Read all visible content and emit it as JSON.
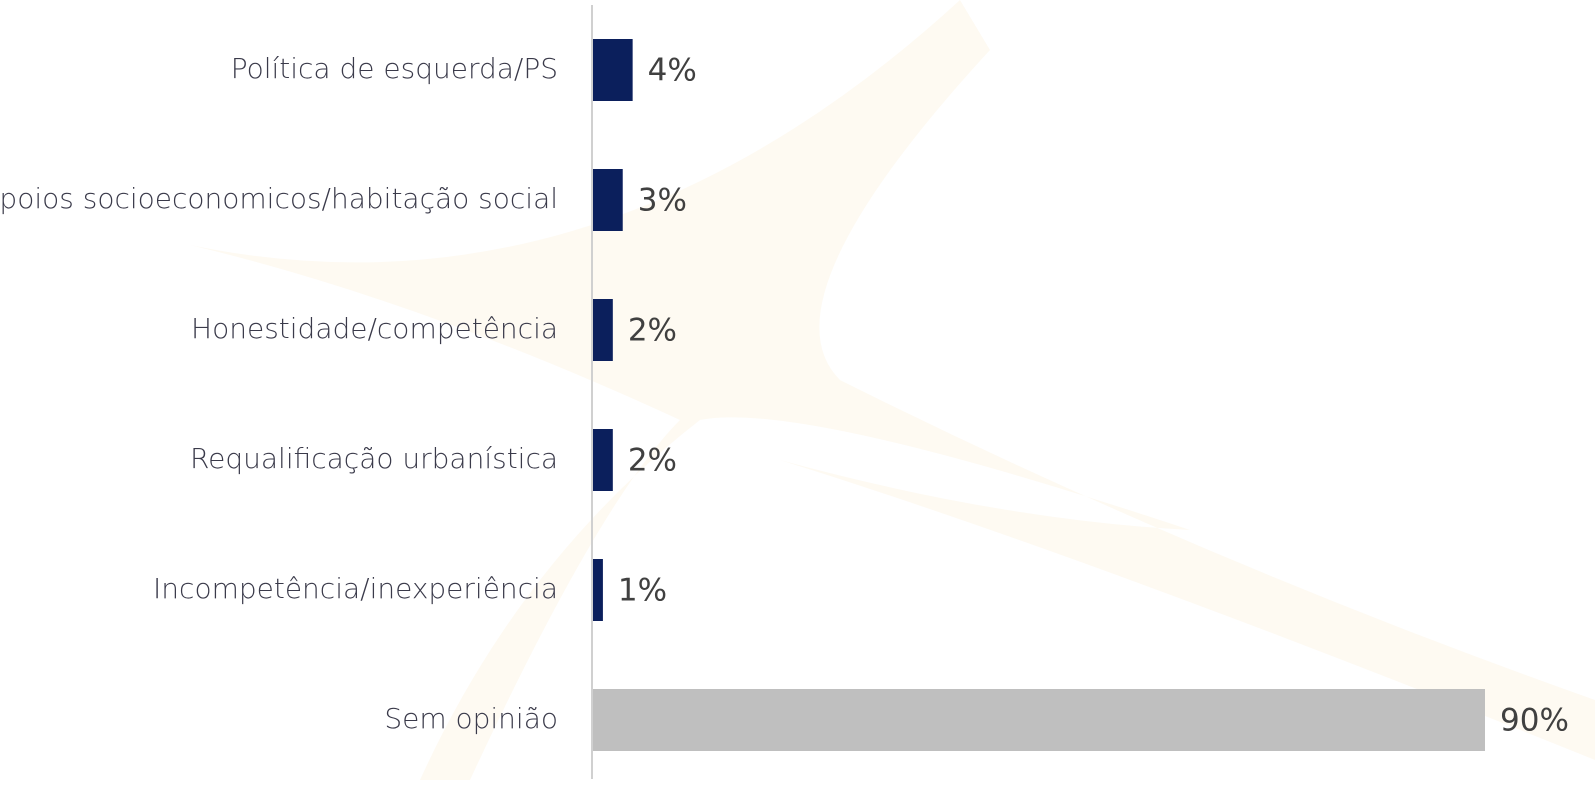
{
  "chart_data": {
    "type": "barh",
    "categories": [
      "Política de esquerda/PS",
      "Apoios socioeconomicos/habitação social",
      "Honestidade/competência",
      "Requalificação urbanística",
      "Incompetência/inexperiência",
      "Sem opinião"
    ],
    "values": [
      4,
      3,
      2,
      2,
      1,
      90
    ],
    "value_labels": [
      "4%",
      "3%",
      "2%",
      "2%",
      "1%",
      "90%"
    ],
    "colors": [
      "#0b1f5c",
      "#0b1f5c",
      "#0b1f5c",
      "#0b1f5c",
      "#0b1f5c",
      "#bfbfbf"
    ]
  }
}
